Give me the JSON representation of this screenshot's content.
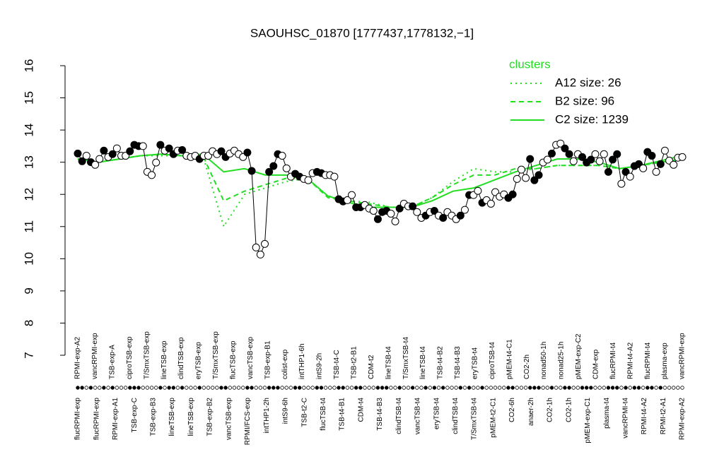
{
  "chart_data": {
    "type": "line",
    "title": "SAOUHSC_01870 [1777437,1778132,−1]",
    "ylim": [
      7,
      16
    ],
    "yticks": [
      7,
      8,
      9,
      10,
      11,
      12,
      13,
      14,
      15,
      16
    ],
    "values": [
      13.27,
      13.03,
      13.2,
      13.0,
      12.92,
      13.1,
      13.36,
      13.16,
      13.25,
      13.43,
      13.2,
      13.2,
      13.34,
      13.54,
      13.5,
      13.5,
      12.7,
      12.6,
      12.99,
      13.54,
      13.36,
      13.43,
      13.25,
      13.36,
      13.38,
      13.2,
      13.16,
      13.2,
      13.1,
      13.2,
      13.2,
      13.34,
      13.25,
      13.34,
      13.16,
      13.27,
      13.36,
      13.25,
      13.16,
      13.3,
      12.73,
      10.35,
      10.13,
      10.46,
      12.7,
      12.88,
      13.25,
      13.2,
      12.81,
      12.55,
      12.64,
      12.55,
      12.48,
      12.44,
      12.66,
      12.7,
      12.66,
      12.6,
      12.6,
      12.55,
      11.85,
      11.78,
      11.82,
      11.98,
      11.6,
      11.6,
      11.67,
      11.56,
      11.49,
      11.23,
      11.45,
      11.49,
      11.4,
      11.16,
      11.56,
      11.71,
      11.63,
      11.63,
      11.45,
      11.27,
      11.34,
      11.45,
      11.49,
      11.34,
      11.27,
      11.45,
      11.34,
      11.23,
      11.34,
      11.52,
      11.98,
      11.98,
      12.11,
      11.74,
      11.82,
      11.71,
      12.07,
      11.93,
      12.0,
      11.89,
      12.0,
      12.48,
      12.77,
      12.51,
      13.1,
      12.44,
      12.6,
      12.99,
      13.08,
      13.27,
      13.54,
      13.58,
      13.43,
      13.25,
      13.03,
      13.25,
      13.16,
      12.99,
      13.08,
      13.25,
      13.03,
      13.25,
      12.7,
      13.08,
      13.25,
      12.33,
      12.7,
      12.55,
      12.88,
      12.94,
      12.81,
      13.32,
      13.2,
      12.7,
      12.94,
      13.36,
      13.05,
      12.92,
      13.14,
      13.16
    ],
    "filled": [
      true,
      true,
      false,
      true,
      false,
      false,
      true,
      false,
      true,
      false,
      false,
      false,
      true,
      true,
      true,
      false,
      false,
      false,
      false,
      true,
      false,
      true,
      true,
      false,
      true,
      false,
      false,
      false,
      true,
      false,
      false,
      false,
      false,
      true,
      true,
      false,
      false,
      false,
      false,
      true,
      true,
      false,
      false,
      false,
      true,
      true,
      true,
      false,
      false,
      false,
      true,
      true,
      false,
      false,
      false,
      true,
      true,
      false,
      false,
      false,
      true,
      true,
      false,
      false,
      true,
      true,
      false,
      false,
      false,
      true,
      true,
      true,
      false,
      false,
      true,
      false,
      false,
      true,
      false,
      false,
      true,
      false,
      true,
      false,
      true,
      false,
      false,
      false,
      true,
      false,
      true,
      false,
      false,
      true,
      false,
      false,
      false,
      false,
      false,
      true,
      true,
      false,
      false,
      false,
      true,
      true,
      true,
      false,
      false,
      true,
      false,
      false,
      true,
      true,
      false,
      false,
      true,
      true,
      true,
      false,
      false,
      false,
      true,
      true,
      true,
      false,
      true,
      false,
      true,
      true,
      false,
      true,
      true,
      false,
      true,
      false,
      false,
      false,
      false,
      false
    ],
    "legend_title": "clusters",
    "series": [
      {
        "name": "A12 size: 26",
        "color": "#22dd22",
        "dash": "2,5",
        "values": [
          13.1,
          13.0,
          13.1,
          13.2,
          13.2,
          13.2,
          13.2,
          11.0,
          12.0,
          12.2,
          12.4,
          12.5,
          11.95,
          11.8,
          11.75,
          11.6,
          11.6,
          11.9,
          12.4,
          12.8,
          12.7,
          12.7,
          12.8,
          12.9,
          12.9,
          12.9,
          12.8,
          12.9,
          13.0,
          13.1
        ]
      },
      {
        "name": "B2 size: 96",
        "color": "#22dd22",
        "dash": "7,5",
        "values": [
          13.1,
          13.0,
          13.1,
          13.2,
          13.25,
          13.2,
          13.2,
          11.8,
          12.1,
          12.3,
          12.5,
          12.5,
          11.9,
          11.8,
          11.7,
          11.6,
          11.6,
          11.9,
          12.3,
          12.6,
          12.6,
          12.8,
          12.8,
          12.9,
          12.9,
          12.9,
          12.8,
          12.9,
          13.0,
          13.1
        ]
      },
      {
        "name": "C2 size: 1239",
        "color": "#22dd22",
        "dash": "none",
        "values": [
          13.1,
          13.0,
          13.1,
          13.2,
          13.25,
          13.2,
          13.25,
          12.7,
          12.8,
          12.6,
          12.6,
          12.5,
          11.95,
          11.75,
          11.6,
          11.6,
          11.6,
          11.8,
          12.1,
          12.2,
          12.45,
          12.7,
          12.9,
          13.1,
          13.1,
          13.0,
          12.8,
          12.9,
          13.05,
          13.2
        ]
      }
    ],
    "top_labels": [
      "RPMI-exp-A2",
      "vancRPMI-exp",
      "TSB-exp-A",
      "ciproTSB-exp",
      "T/SmxTSB-exp",
      "lineTSB-exp",
      "clindTSB-exp",
      "eryTSB-exp",
      "T/SmxTSB-exp",
      "flucTSB-exp",
      "vancTSB-exp",
      "TSB-exp-B1",
      "colist-exp",
      "intTHP1-6h",
      "intS9-2h",
      "TSB-t4-C",
      "TSB-t2-B1",
      "CDM-t2",
      "lineTSB-t4",
      "T/SmxTSB-t4",
      "lineTSB-t4",
      "TSB-t4-B2",
      "TSB-t4-B3",
      "eryTSB-t4",
      "ciproTSB-t4",
      "pMEM-t4-C1",
      "CO2-2h",
      "nonad50-1h",
      "nonad25-1h",
      "pMEM-exp-C2",
      "CDM-exp",
      "flucRPMI-t4",
      "RPMI-t4-A2",
      "flucRPMI-t4",
      "plasma-exp",
      "vancRPMI-exp"
    ],
    "bottom_labels": [
      "flucRPMI-exp",
      "flucRPMI-exp",
      "RPMI-exp-A1",
      "TSB-exp-C",
      "TSB-exp-B3",
      "lineTSB-exp",
      "lineTSB-exp",
      "TSB-exp-B2",
      "vancTSB-exp",
      "RPMI/FCS-exp",
      "intTHP1-2h",
      "intS9-6h",
      "TSB-t2-C",
      "flucTSB-t4",
      "TSB-t4-B1",
      "CDM-t4",
      "TSB-t4-B3",
      "clindTSB-t4",
      "vancTSB-t4",
      "eryTSB-t4",
      "clindTSB-t4",
      "T/SmxTSB-t4",
      "pMEM-t2-C1",
      "CO2-6h",
      "anaer-2h",
      "CO2-1h",
      "CO2-1h",
      "pMEM-exp-C1",
      "plasma-t4",
      "vancRPMI-t4",
      "RPMI-t4-A2",
      "RPMI-t2-A1",
      "RPMI-exp-A2"
    ]
  }
}
